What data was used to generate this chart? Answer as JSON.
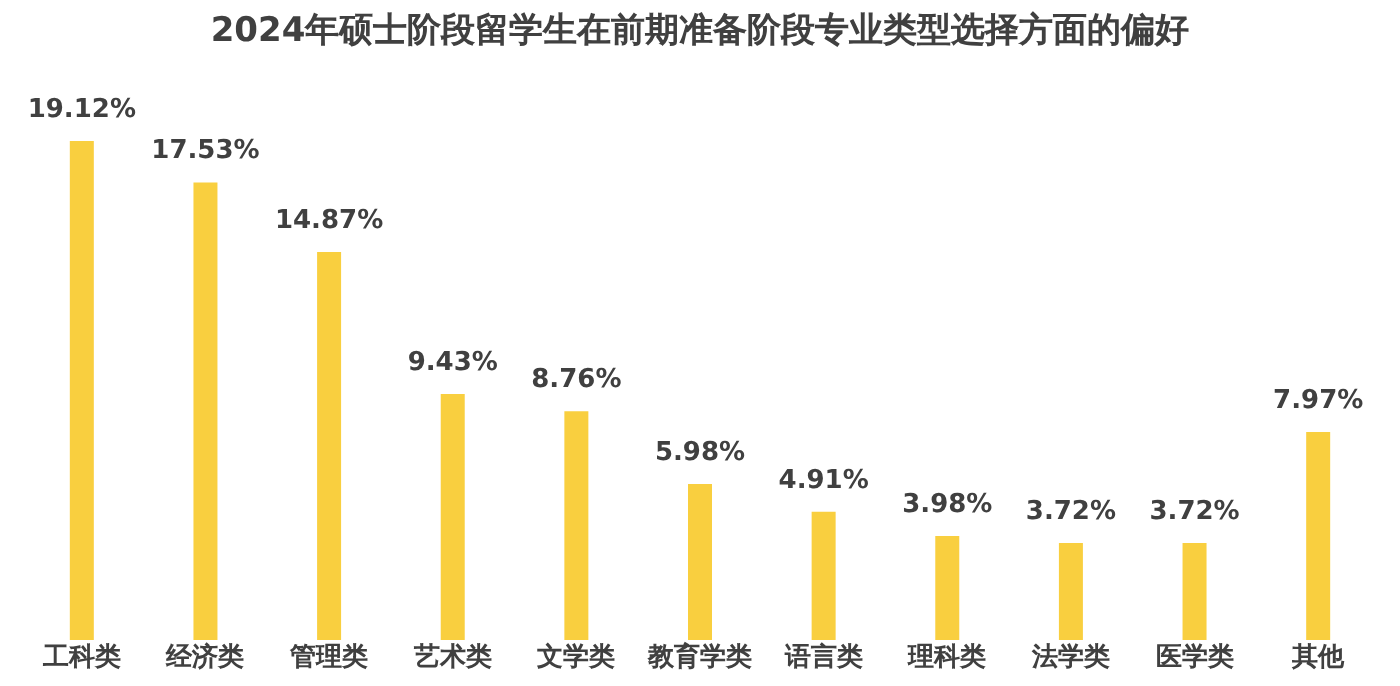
{
  "chart_data": {
    "type": "bar",
    "title": "2024年硕士阶段留学生在前期准备阶段专业类型选择方面的偏好",
    "categories": [
      "工科类",
      "经济类",
      "管理类",
      "艺术类",
      "文学类",
      "教育学类",
      "语言类",
      "理科类",
      "法学类",
      "医学类",
      "其他"
    ],
    "values": [
      19.12,
      17.53,
      14.87,
      9.43,
      8.76,
      5.98,
      4.91,
      3.98,
      3.72,
      3.72,
      7.97
    ],
    "value_labels": [
      "19.12%",
      "17.53%",
      "14.87%",
      "9.43%",
      "8.76%",
      "5.98%",
      "4.91%",
      "3.98%",
      "3.72%",
      "3.72%",
      "7.97%"
    ],
    "color": "#f9cf3f",
    "grid": false,
    "tick_labels": "x"
  }
}
